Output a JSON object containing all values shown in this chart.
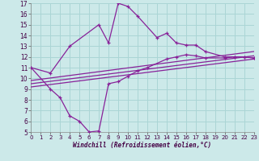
{
  "xlabel": "Windchill (Refroidissement éolien,°C)",
  "xlim": [
    0,
    23
  ],
  "ylim": [
    5,
    17
  ],
  "xticks": [
    0,
    1,
    2,
    3,
    4,
    5,
    6,
    7,
    8,
    9,
    10,
    11,
    12,
    13,
    14,
    15,
    16,
    17,
    18,
    19,
    20,
    21,
    22,
    23
  ],
  "yticks": [
    5,
    6,
    7,
    8,
    9,
    10,
    11,
    12,
    13,
    14,
    15,
    16,
    17
  ],
  "bg_color": "#cce9e9",
  "grid_color": "#aad5d5",
  "line_color": "#882299",
  "line1_x": [
    0,
    2,
    4,
    7,
    8,
    9,
    10,
    11,
    13,
    14,
    15,
    16,
    17,
    18,
    20,
    21,
    22,
    23
  ],
  "line1_y": [
    11,
    10.5,
    13.0,
    15.0,
    13.3,
    17.0,
    16.7,
    15.8,
    13.8,
    14.2,
    13.3,
    13.1,
    13.1,
    12.5,
    12.0,
    12.0,
    12.0,
    11.9
  ],
  "line2_x": [
    0,
    2,
    3,
    4,
    5,
    6,
    7,
    8,
    9,
    10,
    11,
    12,
    14,
    15,
    16,
    17,
    18,
    20,
    21,
    22,
    23
  ],
  "line2_y": [
    11,
    9.0,
    8.2,
    6.5,
    6.0,
    5.0,
    5.1,
    9.5,
    9.7,
    10.2,
    10.7,
    11.0,
    11.8,
    12.0,
    12.2,
    12.1,
    11.9,
    11.9,
    12.0,
    12.0,
    11.9
  ],
  "line3_x": [
    0,
    23
  ],
  "line3_y": [
    9.2,
    11.8
  ],
  "line4_x": [
    0,
    23
  ],
  "line4_y": [
    9.5,
    12.1
  ],
  "line5_x": [
    0,
    23
  ],
  "line5_y": [
    9.8,
    12.5
  ]
}
